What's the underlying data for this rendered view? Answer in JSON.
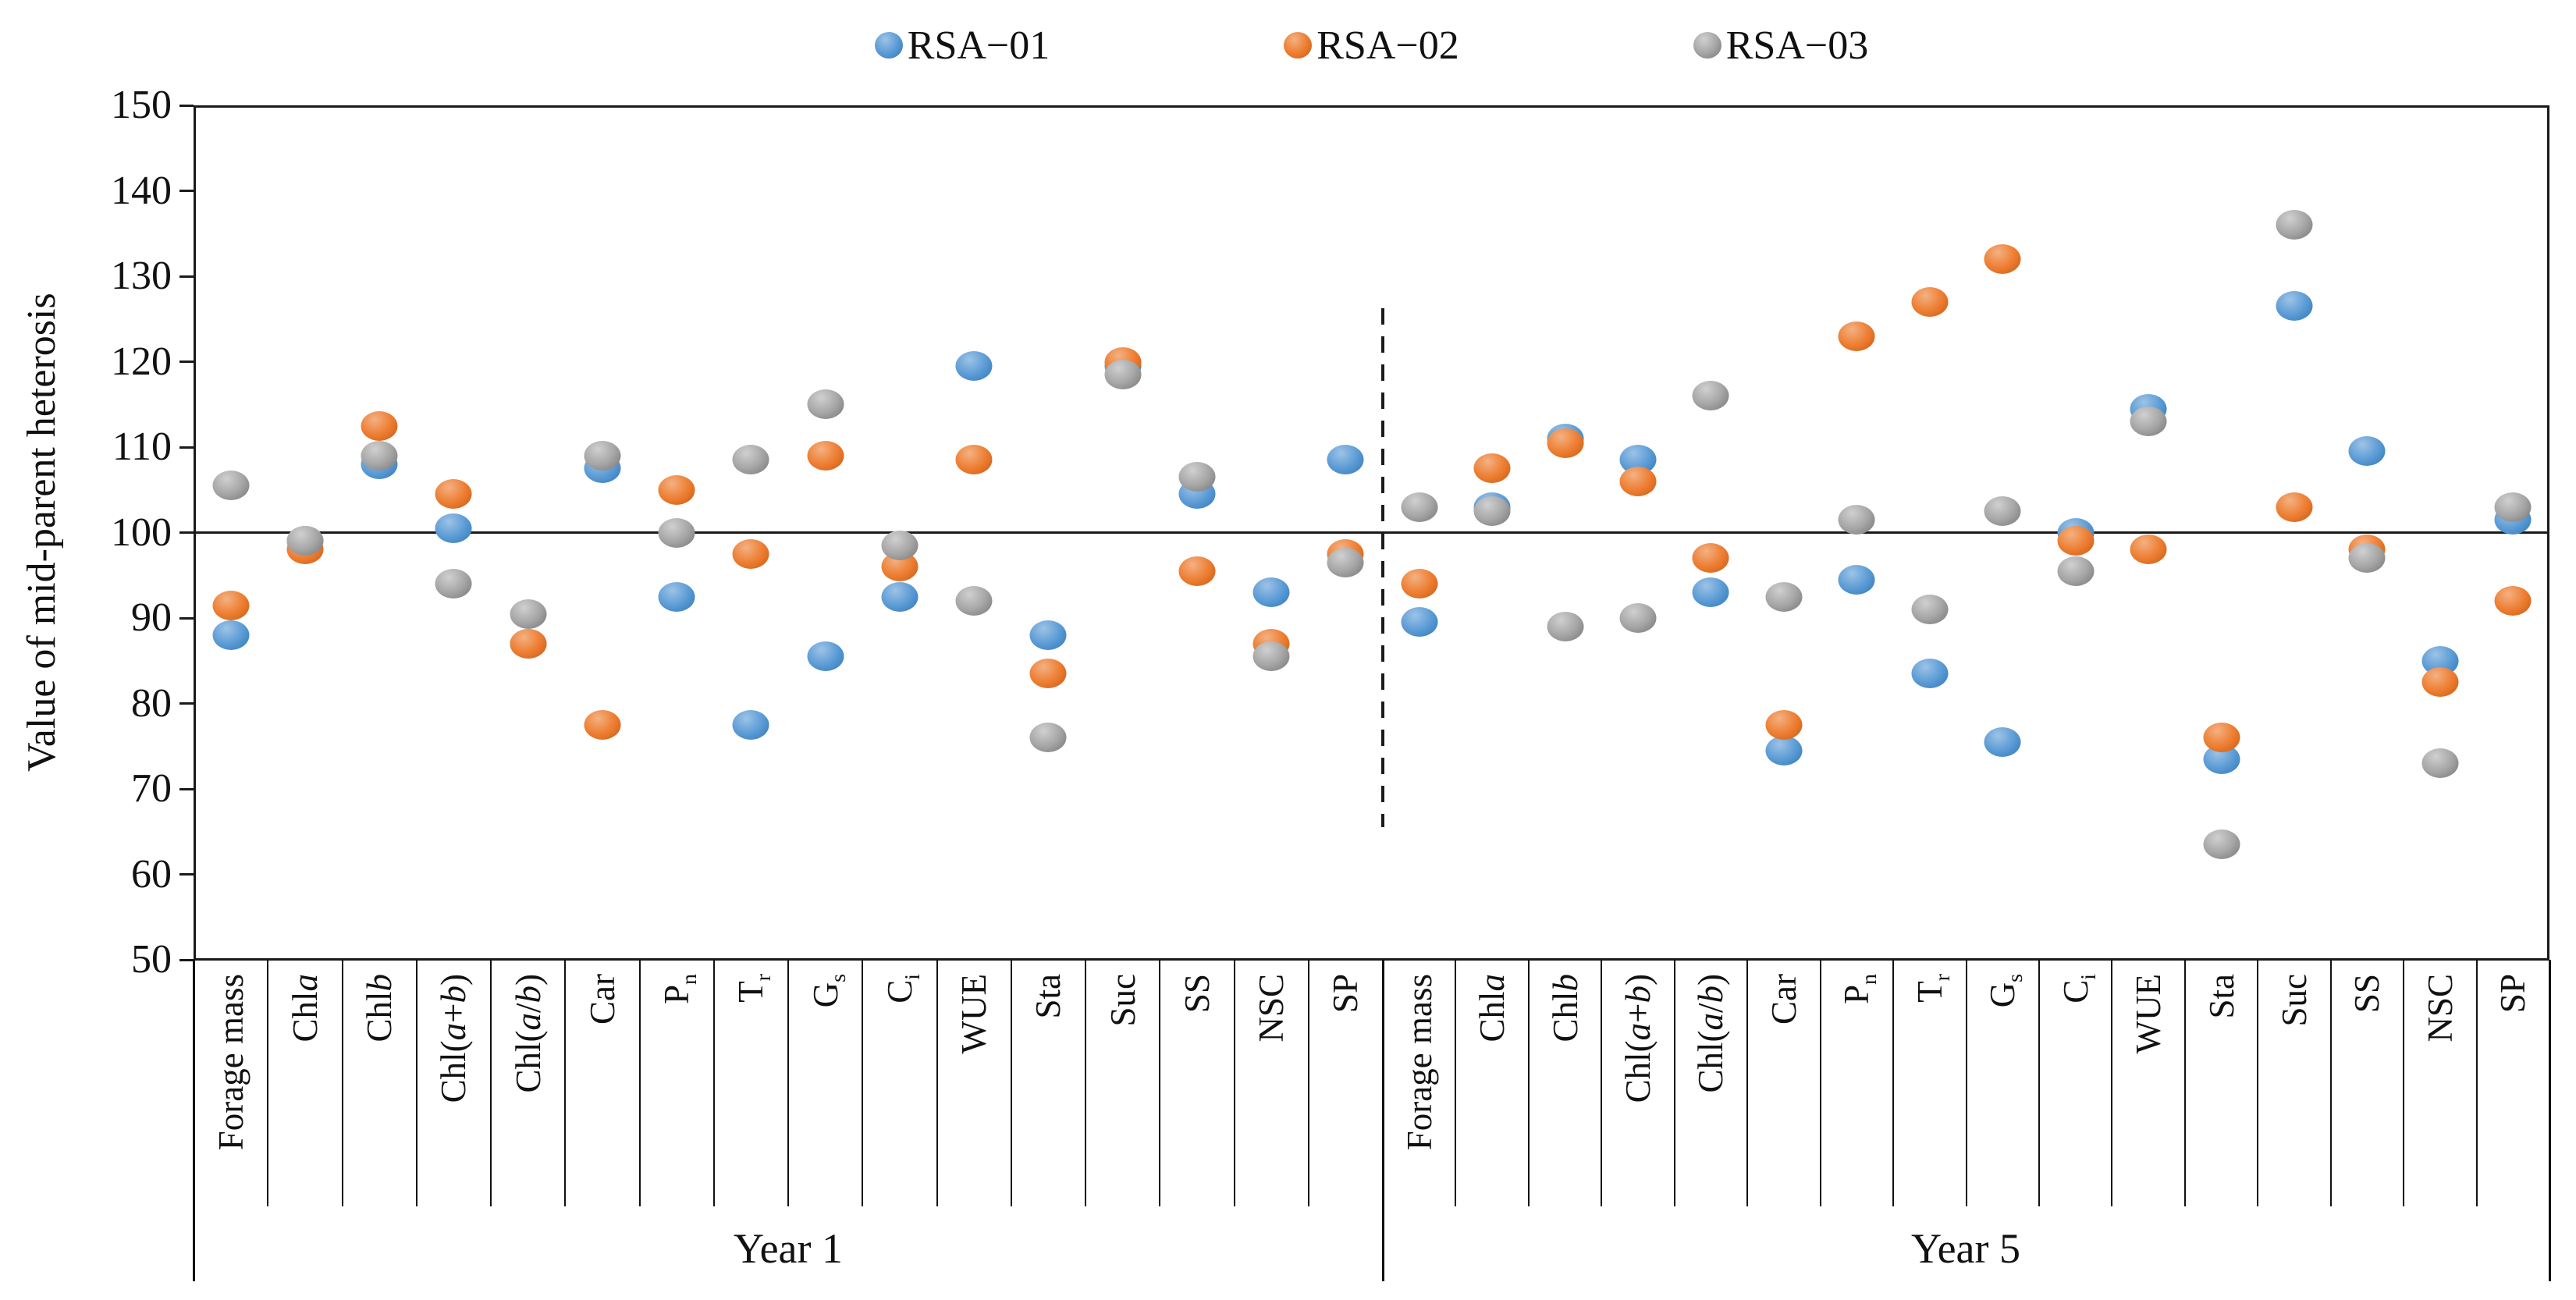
{
  "chart_data": {
    "type": "scatter",
    "title": "",
    "ylabel": "Value of mid-parent heterosis",
    "ylim": [
      50,
      150
    ],
    "ytick_step": 10,
    "baseline_value": 100,
    "grid": false,
    "legend_position": "top-center",
    "group_labels": [
      "Year 1",
      "Year 5"
    ],
    "categories": [
      "Forage mass",
      "Chl*a*",
      "Chl*b*",
      "Chl(*a*+*b*)",
      "Chl(*a*/*b*)",
      "Car",
      "P_n",
      "T_r",
      "G_s",
      "C_i",
      "WUE",
      "Sta",
      "Suc",
      "SS",
      "NSC",
      "SP"
    ],
    "series": [
      {
        "name": "RSA−01",
        "color": "#5B9BD5",
        "color_light": "#9DC3E6",
        "color_dark": "#2E75B6",
        "year1": [
          88,
          99,
          108,
          100.5,
          87,
          107.5,
          92.5,
          77.5,
          85.5,
          92.5,
          119.5,
          88,
          119.5,
          104.5,
          93,
          108.5
        ],
        "year5": [
          89.5,
          103,
          111,
          108.5,
          93,
          74.5,
          94.5,
          83.5,
          75.5,
          100,
          114.5,
          73.5,
          126.5,
          109.5,
          85,
          101.5
        ]
      },
      {
        "name": "RSA−02",
        "color": "#ED7D31",
        "color_light": "#F4B183",
        "color_dark": "#C55A11",
        "year1": [
          91.5,
          98,
          112.5,
          104.5,
          87,
          77.5,
          105,
          97.5,
          109,
          96,
          108.5,
          83.5,
          120,
          95.5,
          87,
          97.5
        ],
        "year5": [
          94,
          107.5,
          110.5,
          106,
          97,
          77.5,
          123,
          127,
          132,
          99,
          98,
          76,
          103,
          98,
          82.5,
          92
        ]
      },
      {
        "name": "RSA−03",
        "color": "#A5A5A5",
        "color_light": "#D0D0D0",
        "color_dark": "#767171",
        "year1": [
          105.5,
          99,
          109,
          94,
          90.5,
          109,
          100,
          108.5,
          115,
          98.5,
          92,
          76,
          118.5,
          106.5,
          85.5,
          96.5
        ],
        "year5": [
          103,
          102.5,
          89,
          90,
          116,
          92.5,
          101.5,
          91,
          102.5,
          95.5,
          113,
          63.5,
          136,
          97,
          73,
          103
        ]
      }
    ]
  }
}
